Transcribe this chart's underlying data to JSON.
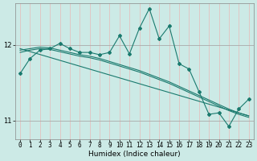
{
  "xlabel": "Humidex (Indice chaleur)",
  "ylabel": "",
  "bg_color": "#cceae6",
  "line_color": "#1a7a6e",
  "grid_color_v": "#e8b8b8",
  "grid_color_h": "#b8ddd8",
  "xlim": [
    -0.5,
    23.5
  ],
  "ylim": [
    10.75,
    12.55
  ],
  "yticks": [
    11,
    12
  ],
  "xticks": [
    0,
    1,
    2,
    3,
    4,
    5,
    6,
    7,
    8,
    9,
    10,
    11,
    12,
    13,
    14,
    15,
    16,
    17,
    18,
    19,
    20,
    21,
    22,
    23
  ],
  "series1_x": [
    0,
    1,
    2,
    3,
    4,
    5,
    6,
    7,
    8,
    9,
    10,
    11,
    12,
    13,
    14,
    15,
    16,
    17,
    18,
    19,
    20,
    21,
    22,
    23
  ],
  "series1_y": [
    11.62,
    11.82,
    11.93,
    11.95,
    12.02,
    11.95,
    11.9,
    11.9,
    11.87,
    11.9,
    12.12,
    11.88,
    12.22,
    12.48,
    12.08,
    12.25,
    11.75,
    11.68,
    11.38,
    11.08,
    11.1,
    10.92,
    11.15,
    11.28
  ],
  "series2_x": [
    0,
    1,
    2,
    3,
    4,
    5,
    6,
    7,
    8,
    9,
    10,
    11,
    12,
    13,
    14,
    15,
    16,
    17,
    18,
    19,
    20,
    21,
    22,
    23
  ],
  "series2_y": [
    11.93,
    11.95,
    11.97,
    11.96,
    11.93,
    11.9,
    11.87,
    11.85,
    11.82,
    11.78,
    11.74,
    11.7,
    11.66,
    11.61,
    11.56,
    11.51,
    11.45,
    11.39,
    11.33,
    11.27,
    11.21,
    11.15,
    11.1,
    11.06
  ],
  "series3_x": [
    0,
    1,
    2,
    3,
    4,
    5,
    6,
    7,
    8,
    9,
    10,
    11,
    12,
    13,
    14,
    15,
    16,
    17,
    18,
    19,
    20,
    21,
    22,
    23
  ],
  "series3_y": [
    11.9,
    11.93,
    11.95,
    11.94,
    11.91,
    11.88,
    11.85,
    11.83,
    11.8,
    11.76,
    11.72,
    11.68,
    11.64,
    11.59,
    11.54,
    11.49,
    11.43,
    11.37,
    11.31,
    11.25,
    11.19,
    11.13,
    11.08,
    11.04
  ],
  "series4_x": [
    0,
    23
  ],
  "series4_y": [
    11.95,
    11.06
  ],
  "fontsize_label": 6.5,
  "fontsize_tick": 5.5
}
